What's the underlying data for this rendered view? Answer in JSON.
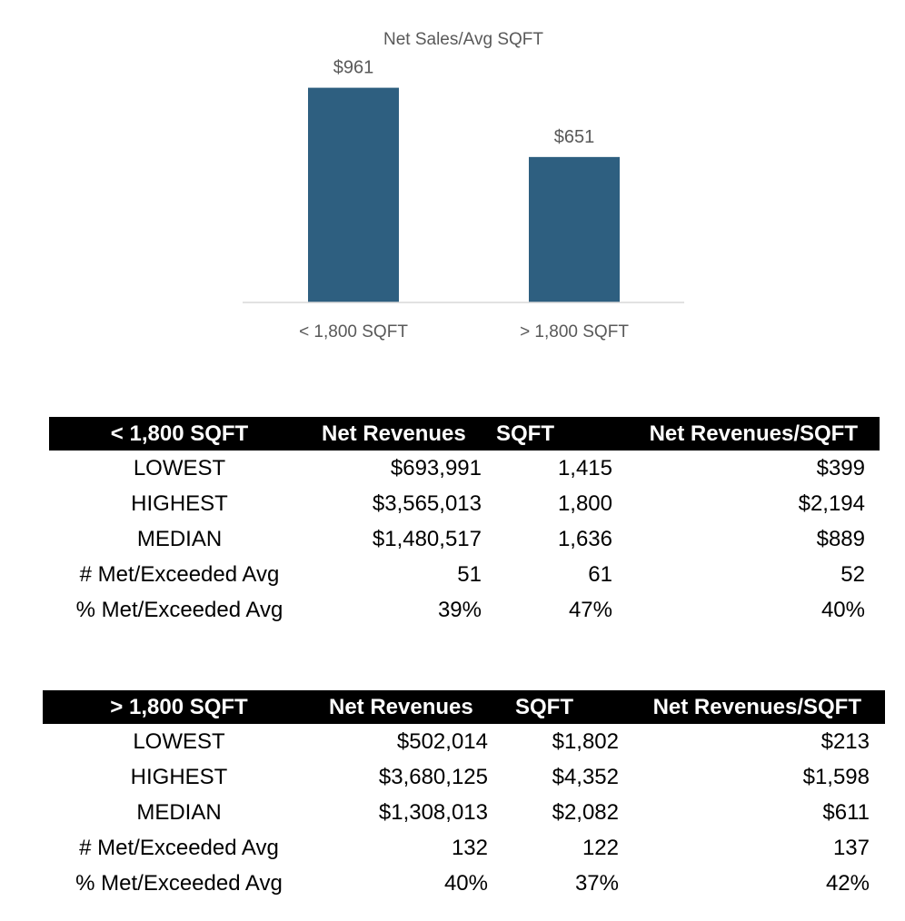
{
  "chart_data": {
    "type": "bar",
    "title": "Net Sales/Avg SQFT",
    "categories": [
      "< 1,800 SQFT",
      "> 1,800 SQFT"
    ],
    "values": [
      961,
      651
    ],
    "data_labels": [
      "$961",
      "$651"
    ],
    "ylim": [
      0,
      1000
    ],
    "grid": false,
    "legend": "none",
    "bar_color": "#2e5f80",
    "axis_color": "#d9d9d9",
    "label_color": "#595959"
  },
  "table_small": {
    "headers": [
      "< 1,800 SQFT",
      "Net Revenues",
      "SQFT",
      "Net Revenues/SQFT"
    ],
    "rows": [
      [
        "LOWEST",
        "$693,991",
        "1,415",
        "$399"
      ],
      [
        "HIGHEST",
        "$3,565,013",
        "1,800",
        "$2,194"
      ],
      [
        "MEDIAN",
        "$1,480,517",
        "1,636",
        "$889"
      ],
      [
        "# Met/Exceeded Avg",
        "51",
        "61",
        "52"
      ],
      [
        "% Met/Exceeded Avg",
        "39%",
        "47%",
        "40%"
      ]
    ]
  },
  "table_large": {
    "headers": [
      "> 1,800 SQFT",
      "Net Revenues",
      "SQFT",
      "Net Revenues/SQFT"
    ],
    "rows": [
      [
        "LOWEST",
        "$502,014",
        "$1,802",
        "$213"
      ],
      [
        "HIGHEST",
        "$3,680,125",
        "$4,352",
        "$1,598"
      ],
      [
        "MEDIAN",
        "$1,308,013",
        "$2,082",
        "$611"
      ],
      [
        "# Met/Exceeded Avg",
        "132",
        "122",
        "137"
      ],
      [
        "% Met/Exceeded Avg",
        "40%",
        "37%",
        "42%"
      ]
    ]
  }
}
